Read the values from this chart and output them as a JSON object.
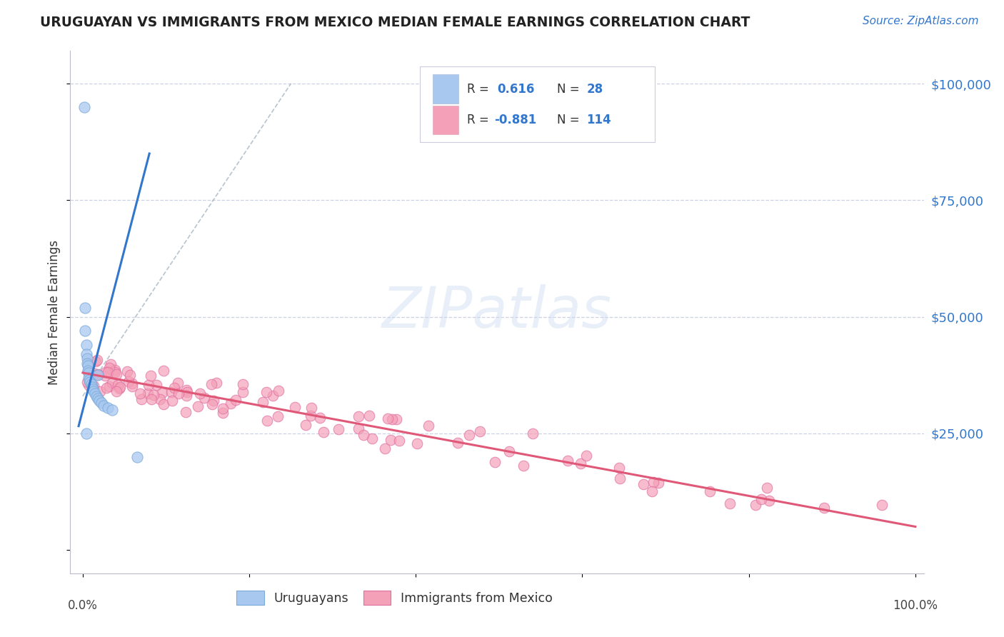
{
  "title": "URUGUAYAN VS IMMIGRANTS FROM MEXICO MEDIAN FEMALE EARNINGS CORRELATION CHART",
  "source": "Source: ZipAtlas.com",
  "ylabel": "Median Female Earnings",
  "legend1_r": " 0.616",
  "legend1_n": " 28",
  "legend2_r": "-0.881",
  "legend2_n": " 114",
  "uruguayan_color": "#a8c8f0",
  "uruguayan_edge": "#7aaad8",
  "mexico_color": "#f4a0b8",
  "mexico_edge": "#e070a0",
  "trendline_blue": "#3377cc",
  "trendline_pink": "#e05878",
  "dashed_line_color": "#99aabb",
  "background_color": "#ffffff",
  "grid_color": "#c8cce0",
  "ytick_color": "#3377cc",
  "title_color": "#222222",
  "source_color": "#3377cc"
}
